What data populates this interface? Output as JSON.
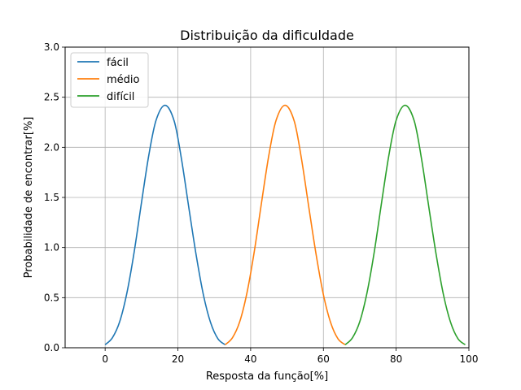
{
  "chart_data": {
    "type": "line",
    "title": "Distribuição da dificuldade",
    "xlabel": "Resposta da função[%]",
    "ylabel": "Probabilidade de encontrar[%]",
    "xlim": [
      -11,
      100
    ],
    "ylim": [
      0,
      3.0
    ],
    "xticks": [
      0,
      20,
      40,
      60,
      80,
      100
    ],
    "xtick_labels": [
      "0",
      "20",
      "40",
      "60",
      "80",
      "100"
    ],
    "yticks": [
      0,
      0.5,
      1.0,
      1.5,
      2.0,
      2.5,
      3.0
    ],
    "ytick_labels": [
      "0.0",
      "0.5",
      "1.0",
      "1.5",
      "2.0",
      "2.5",
      "3.0"
    ],
    "grid": true,
    "legend_position": "top-left",
    "series": [
      {
        "name": "fácil",
        "color": "#1f77b4",
        "x": [
          0,
          2,
          4,
          6,
          8,
          10,
          12,
          14,
          16.5,
          19,
          21,
          23,
          25,
          27,
          29,
          31,
          33
        ],
        "y": [
          0.03,
          0.1,
          0.26,
          0.55,
          0.96,
          1.45,
          1.92,
          2.27,
          2.42,
          2.26,
          1.88,
          1.4,
          0.93,
          0.53,
          0.25,
          0.09,
          0.03
        ]
      },
      {
        "name": "médio",
        "color": "#ff7f0e",
        "x": [
          33,
          35,
          37,
          39,
          41,
          43,
          45,
          47,
          49.5,
          52,
          54,
          56,
          58,
          60,
          62,
          64,
          66
        ],
        "y": [
          0.03,
          0.1,
          0.26,
          0.55,
          0.96,
          1.45,
          1.92,
          2.27,
          2.42,
          2.26,
          1.88,
          1.4,
          0.93,
          0.53,
          0.25,
          0.09,
          0.03
        ]
      },
      {
        "name": "difícil",
        "color": "#2ca02c",
        "x": [
          66,
          68,
          70,
          72,
          74,
          76,
          78,
          80,
          82.5,
          85,
          87,
          89,
          91,
          93,
          95,
          97,
          99
        ],
        "y": [
          0.03,
          0.1,
          0.26,
          0.55,
          0.96,
          1.45,
          1.92,
          2.27,
          2.42,
          2.26,
          1.88,
          1.4,
          0.93,
          0.53,
          0.25,
          0.09,
          0.03
        ]
      }
    ]
  }
}
